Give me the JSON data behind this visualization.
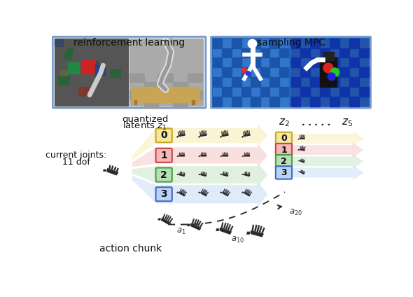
{
  "bg_color": "#ffffff",
  "top_labels": [
    "reinforcement learning",
    "sampling MPC"
  ],
  "top_border_color": "#7799bb",
  "row_colors": [
    "#f5e6a0",
    "#f5b8b8",
    "#b8dfb8",
    "#b8d4f5"
  ],
  "row_border_colors": [
    "#c8a820",
    "#c84444",
    "#44a044",
    "#4466cc"
  ],
  "row_labels": [
    "0",
    "1",
    "2",
    "3"
  ],
  "text_quantized": "quantized",
  "text_latents_z1": "latents $z_1$",
  "text_current_joints": "current joints:",
  "text_11dof": "11 dof",
  "text_action_chunk": "action chunk",
  "text_z2": "$z_2$",
  "text_dots": ". . . . .",
  "text_z5": "$z_5$",
  "text_a1": "$a_1$",
  "text_a10": "$a_{10}$",
  "text_a20": "$a_{20}$",
  "hand_dark": "#2a2a2a",
  "img_left_bg": "#666666",
  "img_right_bg": "#1a55bb"
}
